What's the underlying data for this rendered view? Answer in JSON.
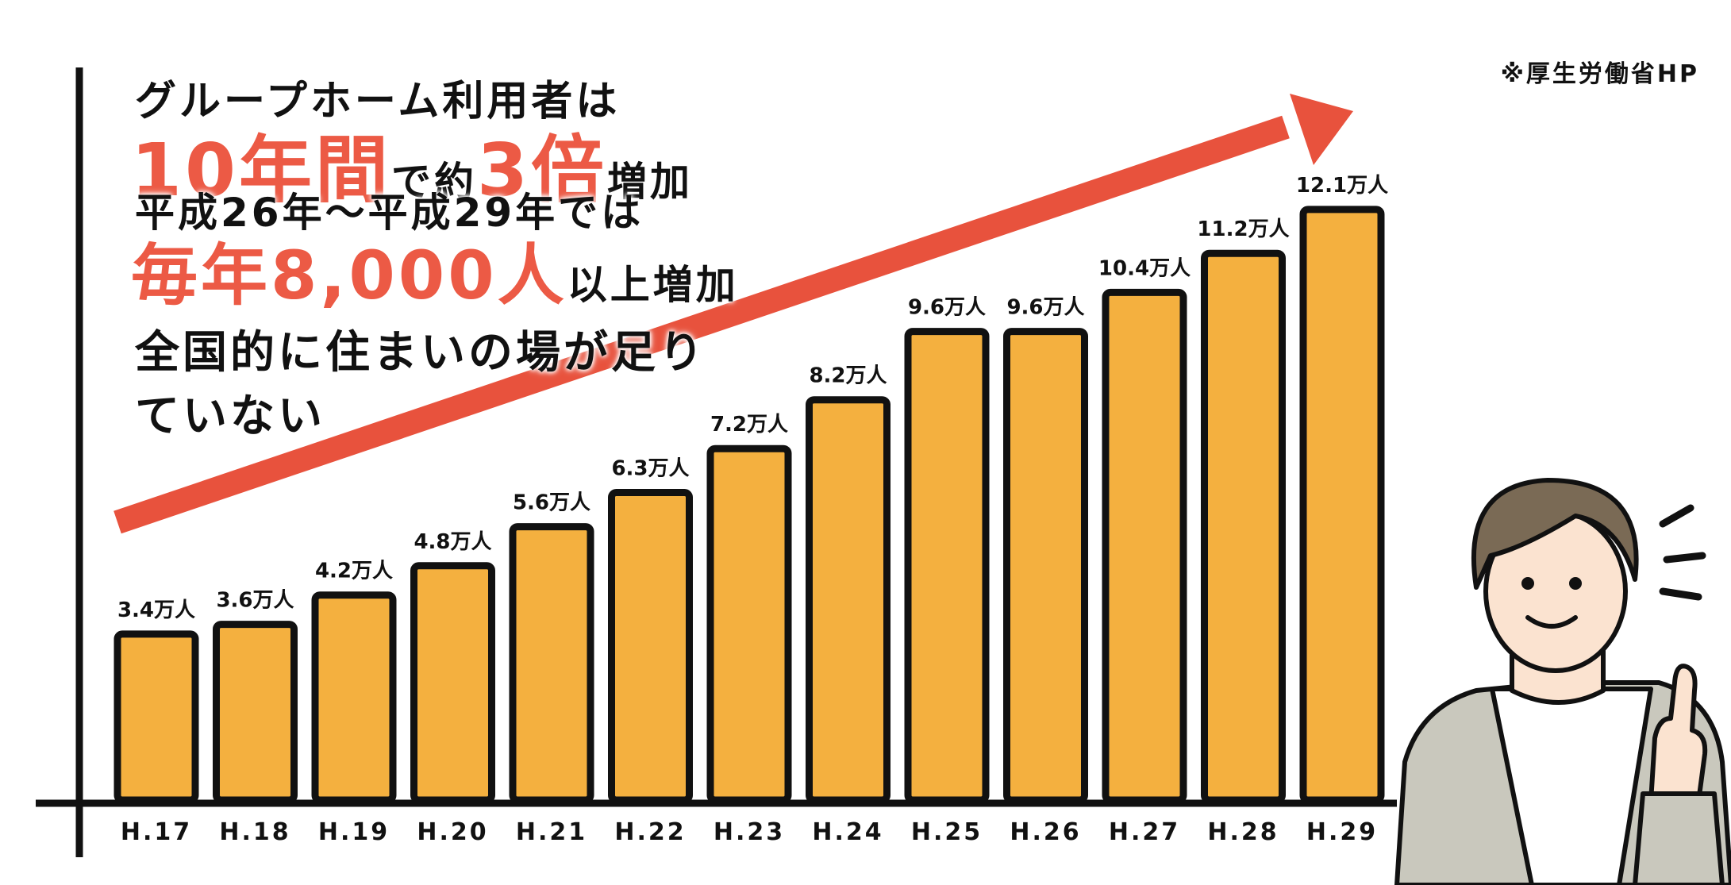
{
  "source_note": "※厚生労働省HP",
  "headline": {
    "line1": "グループホーム利用者は",
    "line2_big1": "10年間",
    "line2_mid": "で約",
    "line2_big2": "3倍",
    "line2_end": "増加",
    "line3": "平成26年〜平成29年では",
    "line4_big": "毎年8,000人",
    "line4_end": "以上増加",
    "line5": "全国的に住まいの場が足りていない"
  },
  "colors": {
    "bar_fill": "#f4b03f",
    "bar_stroke": "#111111",
    "arrow": "#e8523d",
    "highlight_text": "#ec5a45"
  },
  "illustration": "man-pointing-up-illustration",
  "chart_data": {
    "type": "bar",
    "title": "",
    "xlabel": "",
    "ylabel": "",
    "unit": "万人",
    "categories": [
      "H.17",
      "H.18",
      "H.19",
      "H.20",
      "H.21",
      "H.22",
      "H.23",
      "H.24",
      "H.25",
      "H.26",
      "H.27",
      "H.28",
      "H.29"
    ],
    "values": [
      3.4,
      3.6,
      4.2,
      4.8,
      5.6,
      6.3,
      7.2,
      8.2,
      9.6,
      9.6,
      10.4,
      11.2,
      12.1
    ],
    "value_labels": [
      "3.4万人",
      "3.6万人",
      "4.2万人",
      "4.8万人",
      "5.6万人",
      "6.3万人",
      "7.2万人",
      "8.2万人",
      "9.6万人",
      "9.6万人",
      "10.4万人",
      "11.2万人",
      "12.1万人"
    ],
    "trend_arrow": "up",
    "grid": false,
    "legend": "none"
  }
}
